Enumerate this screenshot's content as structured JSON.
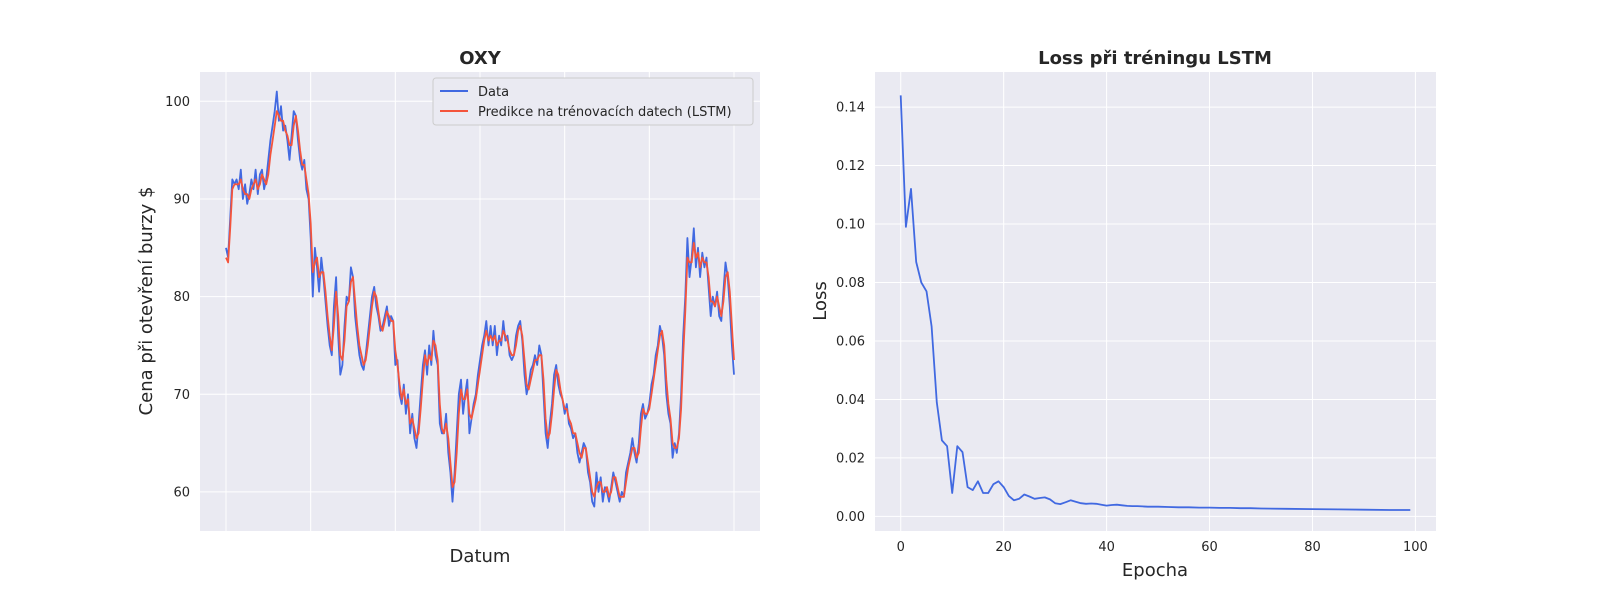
{
  "chart_data": [
    {
      "type": "line",
      "title": "OXY",
      "xlabel": "Datum",
      "ylabel": "Cena při otevření burzy $",
      "ylim": [
        56,
        103
      ],
      "y_ticks": [
        60,
        70,
        80,
        90,
        100
      ],
      "x_ticks_count": 7,
      "grid": true,
      "legend": "top-right",
      "series": [
        {
          "name": "Data",
          "color": "#4169e1",
          "values": [
            85.0,
            84.0,
            88.0,
            92.0,
            91.5,
            92.0,
            91.0,
            93.0,
            90.0,
            91.5,
            89.5,
            90.5,
            92.0,
            91.0,
            93.0,
            90.5,
            92.5,
            93.0,
            91.0,
            92.0,
            94.0,
            96.0,
            97.5,
            99.0,
            101.0,
            98.0,
            99.5,
            97.0,
            97.5,
            96.0,
            94.0,
            96.5,
            99.0,
            98.5,
            96.0,
            94.0,
            93.0,
            94.0,
            91.0,
            90.0,
            86.0,
            80.0,
            85.0,
            83.0,
            80.5,
            84.0,
            82.0,
            79.5,
            77.0,
            75.0,
            74.0,
            79.0,
            82.0,
            76.0,
            72.0,
            73.0,
            77.0,
            80.0,
            79.5,
            83.0,
            82.0,
            78.0,
            76.0,
            74.0,
            73.0,
            72.5,
            74.0,
            76.0,
            78.0,
            80.0,
            81.0,
            79.0,
            78.0,
            76.5,
            77.0,
            78.0,
            79.0,
            77.0,
            78.0,
            77.5,
            73.0,
            73.5,
            70.0,
            69.0,
            71.0,
            68.0,
            70.0,
            66.0,
            68.0,
            65.5,
            64.5,
            67.0,
            70.0,
            73.0,
            74.5,
            72.0,
            75.0,
            73.0,
            76.5,
            74.0,
            73.0,
            67.0,
            66.0,
            66.0,
            68.0,
            64.0,
            62.0,
            59.0,
            62.0,
            66.0,
            70.0,
            71.5,
            68.0,
            70.0,
            71.5,
            66.0,
            67.5,
            69.0,
            70.0,
            72.0,
            73.5,
            75.0,
            76.0,
            77.5,
            75.0,
            77.0,
            75.0,
            77.0,
            74.0,
            76.0,
            75.0,
            77.5,
            75.5,
            76.0,
            74.0,
            73.5,
            74.0,
            76.0,
            77.0,
            77.5,
            75.5,
            72.0,
            70.0,
            71.0,
            72.5,
            73.0,
            74.0,
            73.0,
            75.0,
            74.0,
            70.0,
            66.0,
            64.5,
            67.0,
            69.0,
            72.0,
            73.0,
            71.0,
            70.0,
            69.5,
            68.0,
            69.0,
            67.0,
            66.5,
            65.5,
            66.0,
            64.0,
            63.0,
            64.0,
            65.0,
            64.5,
            62.0,
            61.0,
            59.0,
            58.5,
            62.0,
            60.0,
            61.5,
            59.0,
            60.5,
            60.0,
            59.0,
            60.5,
            62.0,
            61.0,
            60.0,
            59.0,
            60.0,
            59.5,
            62.0,
            63.0,
            64.0,
            65.5,
            64.0,
            63.0,
            65.0,
            68.0,
            69.0,
            67.5,
            68.0,
            69.0,
            71.0,
            72.0,
            74.0,
            75.0,
            77.0,
            76.0,
            74.0,
            70.0,
            68.0,
            67.0,
            63.5,
            65.0,
            64.0,
            66.0,
            70.0,
            76.0,
            80.0,
            86.0,
            82.0,
            84.0,
            87.0,
            83.0,
            85.0,
            82.0,
            84.5,
            83.0,
            84.0,
            81.0,
            78.0,
            80.0,
            79.0,
            80.5,
            78.0,
            77.5,
            80.5,
            83.5,
            82.0,
            79.0,
            75.0,
            72.0
          ]
        },
        {
          "name": "Predikce na trénovacích datech (LSTM)",
          "color": "#f4543c",
          "values": [
            84.0,
            83.5,
            87.0,
            91.0,
            91.5,
            91.5,
            91.5,
            92.0,
            91.0,
            90.5,
            90.5,
            90.0,
            91.0,
            91.5,
            92.0,
            91.0,
            91.5,
            92.5,
            92.0,
            91.5,
            92.5,
            94.5,
            96.0,
            97.5,
            99.0,
            98.5,
            98.0,
            98.0,
            97.0,
            96.5,
            95.5,
            95.5,
            97.5,
            98.5,
            97.0,
            95.0,
            93.5,
            93.5,
            92.0,
            90.5,
            87.5,
            82.5,
            83.5,
            84.0,
            82.0,
            82.5,
            82.5,
            80.5,
            78.0,
            76.0,
            74.5,
            77.0,
            80.5,
            78.0,
            74.0,
            73.5,
            75.5,
            79.0,
            79.5,
            81.5,
            82.0,
            79.5,
            77.0,
            75.0,
            74.0,
            73.0,
            73.5,
            75.0,
            77.0,
            79.0,
            80.5,
            80.0,
            78.5,
            77.0,
            76.5,
            77.5,
            78.5,
            78.0,
            77.5,
            77.5,
            74.5,
            73.0,
            71.0,
            69.5,
            70.5,
            69.0,
            69.5,
            67.0,
            67.5,
            66.5,
            65.5,
            66.0,
            68.5,
            71.5,
            74.0,
            73.0,
            74.0,
            73.5,
            75.5,
            75.0,
            73.5,
            69.0,
            66.5,
            66.0,
            67.0,
            65.5,
            63.0,
            60.5,
            61.0,
            64.0,
            68.0,
            70.5,
            69.5,
            69.5,
            70.5,
            68.0,
            67.5,
            68.5,
            69.5,
            71.0,
            72.5,
            74.0,
            75.5,
            76.5,
            75.5,
            76.0,
            75.5,
            76.0,
            75.0,
            75.5,
            75.5,
            76.5,
            76.0,
            75.5,
            74.5,
            74.0,
            74.0,
            75.0,
            76.5,
            77.0,
            76.0,
            73.5,
            71.0,
            70.5,
            71.5,
            72.5,
            73.5,
            73.5,
            74.0,
            74.0,
            71.5,
            67.5,
            65.5,
            66.0,
            68.0,
            70.5,
            72.5,
            72.0,
            70.5,
            69.5,
            68.5,
            68.5,
            67.5,
            67.0,
            66.0,
            66.0,
            65.0,
            64.0,
            63.5,
            64.5,
            64.5,
            63.0,
            61.5,
            60.0,
            59.5,
            60.5,
            61.0,
            61.0,
            60.0,
            60.0,
            60.5,
            59.5,
            60.0,
            61.5,
            61.5,
            60.5,
            59.5,
            59.5,
            59.5,
            61.0,
            62.5,
            63.5,
            64.5,
            64.5,
            63.5,
            64.0,
            66.5,
            68.5,
            68.0,
            68.0,
            68.5,
            70.0,
            71.5,
            73.0,
            74.5,
            76.0,
            76.5,
            75.0,
            71.5,
            69.0,
            67.5,
            65.0,
            64.5,
            64.5,
            65.5,
            68.5,
            74.0,
            78.5,
            84.0,
            83.5,
            83.5,
            85.5,
            84.0,
            84.5,
            83.0,
            84.0,
            83.5,
            83.5,
            82.0,
            79.5,
            79.5,
            79.0,
            80.0,
            79.0,
            78.0,
            79.5,
            82.0,
            82.5,
            80.5,
            77.0,
            73.5
          ]
        }
      ]
    },
    {
      "type": "line",
      "title": "Loss při tréningu LSTM",
      "xlabel": "Epocha",
      "ylabel": "Loss",
      "xlim": [
        -5,
        104
      ],
      "ylim": [
        -0.005,
        0.152
      ],
      "x_ticks": [
        0,
        20,
        40,
        60,
        80,
        100
      ],
      "y_ticks": [
        "0.00",
        "0.02",
        "0.04",
        "0.06",
        "0.08",
        "0.10",
        "0.12",
        "0.14"
      ],
      "grid": true,
      "series": [
        {
          "color": "#4169e1",
          "x": [
            0,
            1,
            2,
            3,
            4,
            5,
            6,
            7,
            8,
            9,
            10,
            11,
            12,
            13,
            14,
            15,
            16,
            17,
            18,
            19,
            20,
            21,
            22,
            23,
            24,
            25,
            26,
            27,
            28,
            29,
            30,
            31,
            32,
            33,
            34,
            35,
            36,
            37,
            38,
            39,
            40,
            41,
            42,
            43,
            44,
            45,
            46,
            47,
            48,
            49,
            50,
            52,
            54,
            56,
            58,
            60,
            62,
            64,
            66,
            68,
            70,
            75,
            80,
            85,
            90,
            95,
            99
          ],
          "values": [
            0.144,
            0.099,
            0.112,
            0.087,
            0.08,
            0.077,
            0.065,
            0.039,
            0.026,
            0.024,
            0.008,
            0.024,
            0.022,
            0.01,
            0.009,
            0.012,
            0.008,
            0.008,
            0.011,
            0.012,
            0.01,
            0.007,
            0.0055,
            0.006,
            0.0075,
            0.0068,
            0.006,
            0.0063,
            0.0065,
            0.0058,
            0.0045,
            0.0042,
            0.0048,
            0.0055,
            0.005,
            0.0045,
            0.0043,
            0.0044,
            0.0043,
            0.004,
            0.0037,
            0.0039,
            0.004,
            0.0038,
            0.0036,
            0.0035,
            0.0035,
            0.0034,
            0.0033,
            0.0033,
            0.0033,
            0.0032,
            0.0031,
            0.0031,
            0.003,
            0.003,
            0.0029,
            0.0029,
            0.0028,
            0.0028,
            0.0027,
            0.0026,
            0.0025,
            0.0024,
            0.0023,
            0.0022,
            0.0022
          ]
        }
      ]
    }
  ]
}
